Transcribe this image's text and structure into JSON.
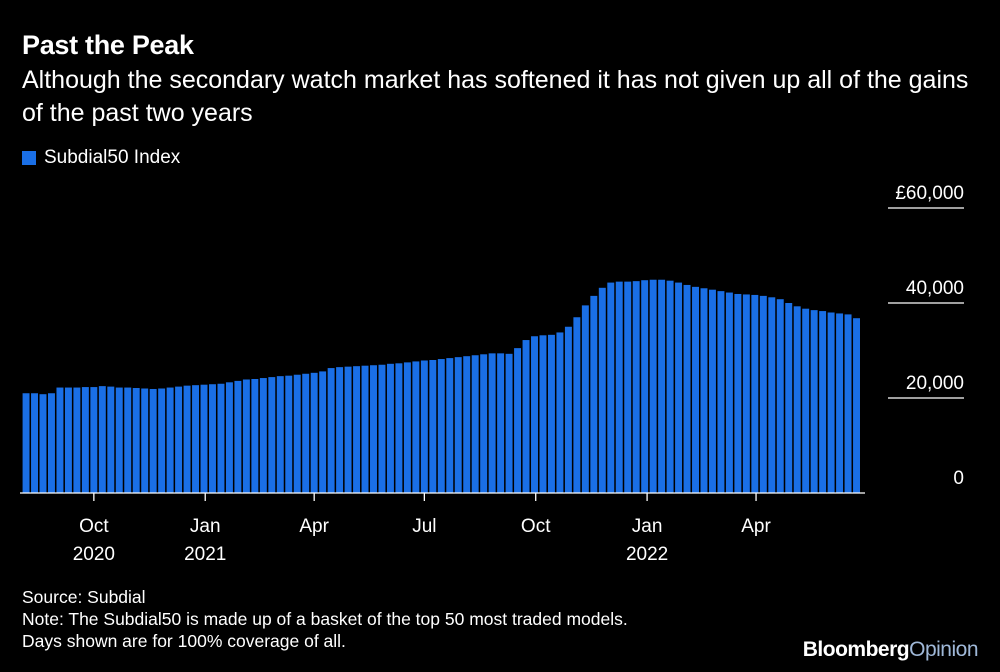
{
  "header": {
    "title": "Past the Peak",
    "subtitle": "Although the secondary watch market has softened it has not given up all of the gains of the past two years"
  },
  "footer": {
    "source": "Source: Subdial",
    "note1": "Note: The Subdial50 is made up of a basket of the top 50 most traded models.",
    "note2": "Days shown are for 100% coverage of all."
  },
  "brand": {
    "bloomberg": "Bloomberg",
    "opinion": "Opinion"
  },
  "colors": {
    "bar": "#1a6fe6",
    "opinion": "#9fb8d8",
    "background": "#000000"
  },
  "chart_data": {
    "type": "bar",
    "legend": "Subdial50 Index",
    "legend_position": "top-left",
    "y_range": [
      0,
      60000
    ],
    "y_ticks": [
      {
        "value": 60000,
        "label": "£60,000"
      },
      {
        "value": 40000,
        "label": "40,000"
      },
      {
        "value": 20000,
        "label": "20,000"
      },
      {
        "value": 0,
        "label": "0"
      }
    ],
    "x_range": [
      "2020-08-01",
      "2022-06-30"
    ],
    "x_ticks": [
      {
        "date": "2020-10-01",
        "label": "Oct",
        "year": "2020"
      },
      {
        "date": "2021-01-01",
        "label": "Jan",
        "year": "2021"
      },
      {
        "date": "2021-04-01",
        "label": "Apr",
        "year": ""
      },
      {
        "date": "2021-07-01",
        "label": "Jul",
        "year": ""
      },
      {
        "date": "2021-10-01",
        "label": "Oct",
        "year": ""
      },
      {
        "date": "2022-01-01",
        "label": "Jan",
        "year": "2022"
      },
      {
        "date": "2022-04-01",
        "label": "Apr",
        "year": ""
      }
    ],
    "series": [
      {
        "name": "Subdial50 Index",
        "points": [
          [
            "2020-08-06",
            21000
          ],
          [
            "2020-08-13",
            21000
          ],
          [
            "2020-08-20",
            20800
          ],
          [
            "2020-08-27",
            21000
          ],
          [
            "2020-09-03",
            22200
          ],
          [
            "2020-09-10",
            22200
          ],
          [
            "2020-09-17",
            22200
          ],
          [
            "2020-09-24",
            22300
          ],
          [
            "2020-10-01",
            22300
          ],
          [
            "2020-10-08",
            22500
          ],
          [
            "2020-10-15",
            22400
          ],
          [
            "2020-10-22",
            22200
          ],
          [
            "2020-10-29",
            22200
          ],
          [
            "2020-11-05",
            22100
          ],
          [
            "2020-11-12",
            22000
          ],
          [
            "2020-11-19",
            21900
          ],
          [
            "2020-11-26",
            22000
          ],
          [
            "2020-12-03",
            22200
          ],
          [
            "2020-12-10",
            22400
          ],
          [
            "2020-12-17",
            22600
          ],
          [
            "2020-12-24",
            22700
          ],
          [
            "2020-12-31",
            22800
          ],
          [
            "2021-01-07",
            22900
          ],
          [
            "2021-01-14",
            23000
          ],
          [
            "2021-01-21",
            23300
          ],
          [
            "2021-01-28",
            23600
          ],
          [
            "2021-02-04",
            23900
          ],
          [
            "2021-02-11",
            24000
          ],
          [
            "2021-02-18",
            24200
          ],
          [
            "2021-02-25",
            24400
          ],
          [
            "2021-03-04",
            24600
          ],
          [
            "2021-03-11",
            24700
          ],
          [
            "2021-03-18",
            24900
          ],
          [
            "2021-03-25",
            25100
          ],
          [
            "2021-04-01",
            25300
          ],
          [
            "2021-04-08",
            25600
          ],
          [
            "2021-04-15",
            26300
          ],
          [
            "2021-04-22",
            26500
          ],
          [
            "2021-04-29",
            26600
          ],
          [
            "2021-05-06",
            26700
          ],
          [
            "2021-05-13",
            26800
          ],
          [
            "2021-05-20",
            26900
          ],
          [
            "2021-05-27",
            27000
          ],
          [
            "2021-06-03",
            27200
          ],
          [
            "2021-06-10",
            27300
          ],
          [
            "2021-06-17",
            27500
          ],
          [
            "2021-06-24",
            27700
          ],
          [
            "2021-07-01",
            27900
          ],
          [
            "2021-07-08",
            28000
          ],
          [
            "2021-07-15",
            28200
          ],
          [
            "2021-07-22",
            28400
          ],
          [
            "2021-07-29",
            28600
          ],
          [
            "2021-08-05",
            28800
          ],
          [
            "2021-08-12",
            29000
          ],
          [
            "2021-08-19",
            29200
          ],
          [
            "2021-08-26",
            29400
          ],
          [
            "2021-09-02",
            29400
          ],
          [
            "2021-09-09",
            29300
          ],
          [
            "2021-09-16",
            30500
          ],
          [
            "2021-09-23",
            32200
          ],
          [
            "2021-09-30",
            33000
          ],
          [
            "2021-10-07",
            33200
          ],
          [
            "2021-10-14",
            33300
          ],
          [
            "2021-10-21",
            33800
          ],
          [
            "2021-10-28",
            35000
          ],
          [
            "2021-11-04",
            37000
          ],
          [
            "2021-11-11",
            39500
          ],
          [
            "2021-11-18",
            41500
          ],
          [
            "2021-11-25",
            43200
          ],
          [
            "2021-12-02",
            44300
          ],
          [
            "2021-12-09",
            44500
          ],
          [
            "2021-12-16",
            44500
          ],
          [
            "2021-12-23",
            44600
          ],
          [
            "2021-12-30",
            44800
          ],
          [
            "2022-01-06",
            44900
          ],
          [
            "2022-01-13",
            44900
          ],
          [
            "2022-01-20",
            44700
          ],
          [
            "2022-01-27",
            44300
          ],
          [
            "2022-02-03",
            43800
          ],
          [
            "2022-02-10",
            43400
          ],
          [
            "2022-02-17",
            43100
          ],
          [
            "2022-02-24",
            42800
          ],
          [
            "2022-03-03",
            42500
          ],
          [
            "2022-03-10",
            42200
          ],
          [
            "2022-03-17",
            41900
          ],
          [
            "2022-03-24",
            41800
          ],
          [
            "2022-03-31",
            41700
          ],
          [
            "2022-04-07",
            41500
          ],
          [
            "2022-04-14",
            41200
          ],
          [
            "2022-04-21",
            40800
          ],
          [
            "2022-04-28",
            40000
          ],
          [
            "2022-05-05",
            39300
          ],
          [
            "2022-05-12",
            38800
          ],
          [
            "2022-05-19",
            38500
          ],
          [
            "2022-05-26",
            38300
          ],
          [
            "2022-06-02",
            38000
          ],
          [
            "2022-06-09",
            37800
          ],
          [
            "2022-06-16",
            37600
          ],
          [
            "2022-06-23",
            36800
          ]
        ]
      }
    ]
  }
}
